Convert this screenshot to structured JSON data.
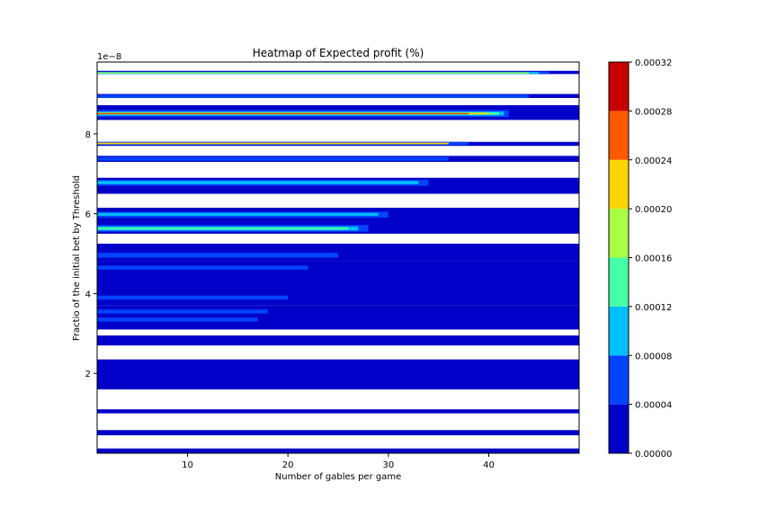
{
  "chart_data": {
    "type": "heatmap",
    "style": "filled-contour",
    "title": "Heatmap of Expected profit (%)",
    "xlabel": "Number of gables per game",
    "ylabel": "Fractio of the initial bet by Threshold",
    "y_offset_text": "1e−8",
    "xlim": [
      1,
      49
    ],
    "ylim": [
      0.0,
      9.8
    ],
    "x_ticks": [
      10,
      20,
      30,
      40
    ],
    "y_ticks": [
      2,
      4,
      6,
      8
    ],
    "colorbar": {
      "levels": [
        0.0,
        4e-05,
        8e-05,
        0.00012,
        0.00016,
        0.0002,
        0.00024,
        0.00028,
        0.00032
      ],
      "tick_labels": [
        "0.00000",
        "0.00004",
        "0.00008",
        "0.00012",
        "0.00016",
        "0.00020",
        "0.00024",
        "0.00028",
        "0.00032"
      ],
      "colors": [
        "#0000c8",
        "#0044ff",
        "#00bfff",
        "#44ffa8",
        "#a8ff44",
        "#ffd400",
        "#ff5a00",
        "#c80000"
      ]
    },
    "bands": [
      {
        "y0": 0.0,
        "y1": 0.12,
        "level": 0,
        "x_end": 49
      },
      {
        "y0": 0.45,
        "y1": 0.58,
        "level": 0,
        "x_end": 49
      },
      {
        "y0": 1.0,
        "y1": 1.1,
        "level": 0,
        "x_end": 49
      },
      {
        "y0": 1.6,
        "y1": 2.35,
        "level": 0,
        "x_end": 49
      },
      {
        "y0": 2.7,
        "y1": 2.95,
        "level": 0,
        "x_end": 49
      },
      {
        "y0": 3.1,
        "y1": 3.7,
        "level": 0,
        "x_end": 49
      },
      {
        "y0": 3.7,
        "y1": 4.8,
        "level": 0,
        "x_end": 49
      },
      {
        "y0": 4.8,
        "y1": 5.25,
        "level": 0,
        "x_end": 49
      },
      {
        "y0": 5.5,
        "y1": 6.15,
        "level": 0,
        "x_end": 49
      },
      {
        "y0": 6.5,
        "y1": 6.9,
        "level": 0,
        "x_end": 49
      },
      {
        "y0": 7.3,
        "y1": 7.45,
        "level": 0,
        "x_end": 49
      },
      {
        "y0": 7.7,
        "y1": 7.8,
        "level": 0,
        "x_end": 49
      },
      {
        "y0": 8.35,
        "y1": 8.72,
        "level": 0,
        "x_end": 49
      },
      {
        "y0": 8.9,
        "y1": 9.0,
        "level": 0,
        "x_end": 49
      },
      {
        "y0": 9.5,
        "y1": 9.58,
        "level": 0,
        "x_end": 49
      },
      {
        "y0": 3.3,
        "y1": 3.4,
        "level": 1,
        "x_end": 17
      },
      {
        "y0": 3.5,
        "y1": 3.6,
        "level": 1,
        "x_end": 18
      },
      {
        "y0": 3.85,
        "y1": 3.95,
        "level": 1,
        "x_end": 20
      },
      {
        "y0": 4.6,
        "y1": 4.7,
        "level": 1,
        "x_end": 22
      },
      {
        "y0": 4.9,
        "y1": 5.02,
        "level": 1,
        "x_end": 25
      },
      {
        "y0": 5.55,
        "y1": 5.72,
        "level": 1,
        "x_end": 28
      },
      {
        "y0": 5.9,
        "y1": 6.05,
        "level": 1,
        "x_end": 30
      },
      {
        "y0": 6.7,
        "y1": 6.85,
        "level": 1,
        "x_end": 34
      },
      {
        "y0": 7.33,
        "y1": 7.42,
        "level": 1,
        "x_end": 36
      },
      {
        "y0": 7.72,
        "y1": 7.8,
        "level": 1,
        "x_end": 38
      },
      {
        "y0": 8.42,
        "y1": 8.6,
        "level": 1,
        "x_end": 42
      },
      {
        "y0": 8.9,
        "y1": 8.98,
        "level": 1,
        "x_end": 44
      },
      {
        "y0": 9.5,
        "y1": 9.56,
        "level": 1,
        "x_end": 46
      },
      {
        "y0": 5.58,
        "y1": 5.68,
        "level": 2,
        "x_end": 27
      },
      {
        "y0": 5.95,
        "y1": 6.02,
        "level": 2,
        "x_end": 29
      },
      {
        "y0": 6.74,
        "y1": 6.82,
        "level": 2,
        "x_end": 33
      },
      {
        "y0": 8.46,
        "y1": 8.56,
        "level": 2,
        "x_end": 41.5
      },
      {
        "y0": 9.5,
        "y1": 9.55,
        "level": 2,
        "x_end": 45
      },
      {
        "y0": 5.6,
        "y1": 5.66,
        "level": 3,
        "x_end": 26
      },
      {
        "y0": 8.48,
        "y1": 8.54,
        "level": 3,
        "x_end": 41
      },
      {
        "y0": 9.51,
        "y1": 9.54,
        "level": 4,
        "x_end": 44
      },
      {
        "y0": 8.49,
        "y1": 8.53,
        "level": 5,
        "x_end": 40
      },
      {
        "y0": 7.74,
        "y1": 7.78,
        "level": 5,
        "x_end": 36
      },
      {
        "y0": 8.5,
        "y1": 8.52,
        "level": 7,
        "x_end": 38
      }
    ]
  }
}
